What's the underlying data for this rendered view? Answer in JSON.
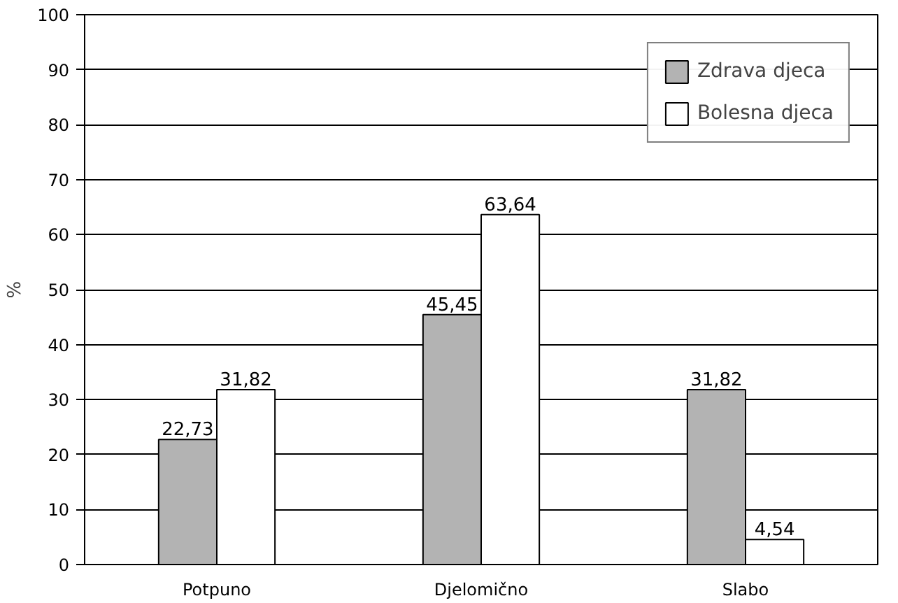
{
  "chart_data": {
    "type": "bar",
    "ylabel": "%",
    "categories": [
      "Potpuno",
      "Djelomično",
      "Slabo"
    ],
    "series": [
      {
        "name": "Zdrava djeca",
        "color": "#b3b3b3",
        "values": [
          22.73,
          45.45,
          31.82
        ],
        "value_labels": [
          "22,73",
          "45,45",
          "31,82"
        ]
      },
      {
        "name": "Bolesna djeca",
        "color": "#ffffff",
        "values": [
          31.82,
          63.64,
          4.54
        ],
        "value_labels": [
          "31,82",
          "63,64",
          "4,54"
        ]
      }
    ],
    "ylim": [
      0,
      100
    ],
    "yticks": [
      0,
      10,
      20,
      30,
      40,
      50,
      60,
      70,
      80,
      90,
      100
    ],
    "grid": "y",
    "legend": "top right"
  }
}
